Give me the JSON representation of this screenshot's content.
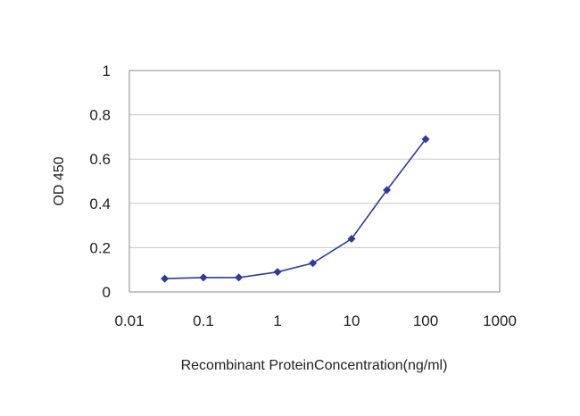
{
  "chart_data": {
    "type": "line",
    "title": "",
    "xlabel": "Recombinant ProteinConcentration(ng/ml)",
    "ylabel": "OD 450",
    "x_scale": "log",
    "xlim": [
      0.01,
      1000
    ],
    "ylim": [
      0,
      1
    ],
    "x_ticks": [
      0.01,
      0.1,
      1,
      10,
      100,
      1000
    ],
    "x_tick_labels": [
      "0.01",
      "0.1",
      "1",
      "10",
      "100",
      "1000"
    ],
    "y_ticks": [
      0,
      0.2,
      0.4,
      0.6,
      0.8,
      1
    ],
    "y_tick_labels": [
      "0",
      "0.2",
      "0.4",
      "0.6",
      "0.8",
      "1"
    ],
    "grid": "horizontal",
    "legend": "none",
    "colors": {
      "series": "#2e3a9e",
      "grid": "#c8c8c8",
      "frame": "#888888"
    },
    "series": [
      {
        "x": [
          0.03,
          0.1,
          0.3,
          1,
          3,
          10,
          30,
          100
        ],
        "y": [
          0.06,
          0.065,
          0.065,
          0.09,
          0.13,
          0.24,
          0.46,
          0.69
        ]
      }
    ]
  }
}
